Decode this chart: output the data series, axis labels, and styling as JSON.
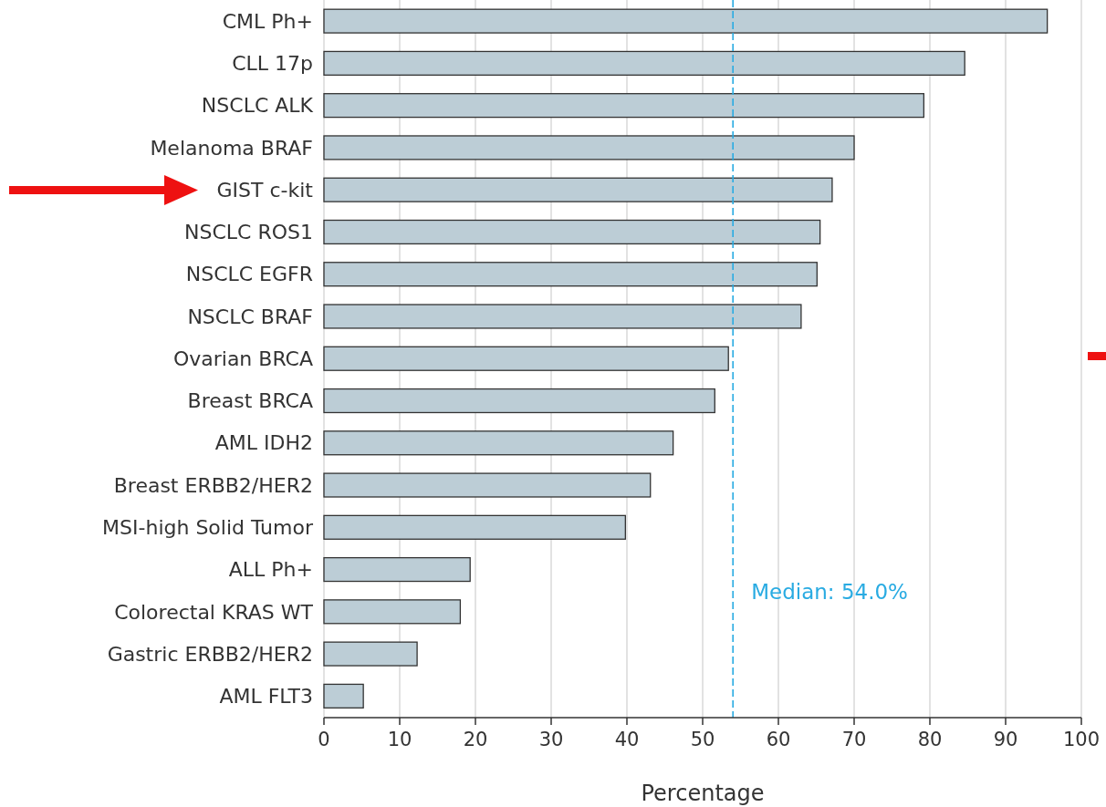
{
  "chart_data": {
    "type": "bar",
    "orientation": "horizontal",
    "xlabel": "Percentage",
    "categories": [
      "CML Ph+",
      "CLL 17p",
      "NSCLC ALK",
      "Melanoma BRAF",
      "GIST c-kit",
      "NSCLC ROS1",
      "NSCLC EGFR",
      "NSCLC BRAF",
      "Ovarian BRCA",
      "Breast BRCA",
      "AML IDH2",
      "Breast ERBB2/HER2",
      "MSI-high Solid Tumor",
      "ALL Ph+",
      "Colorectal KRAS WT",
      "Gastric ERBB2/HER2",
      "AML FLT3"
    ],
    "values": [
      95.5,
      84.6,
      79.2,
      70.0,
      67.1,
      65.5,
      65.1,
      63.0,
      53.4,
      51.6,
      46.1,
      43.1,
      39.8,
      19.3,
      18.0,
      12.3,
      5.2
    ],
    "color": "#bccdd6",
    "xlim": [
      0,
      100
    ],
    "xticks": [
      0,
      10,
      20,
      30,
      40,
      50,
      60,
      70,
      80,
      90,
      100
    ],
    "grid": "x",
    "ref_lines": [
      {
        "axis": "x",
        "value": 54.0,
        "label": "Median: 54.0%",
        "color": "#29abe2",
        "line_style": "dashed"
      }
    ]
  }
}
